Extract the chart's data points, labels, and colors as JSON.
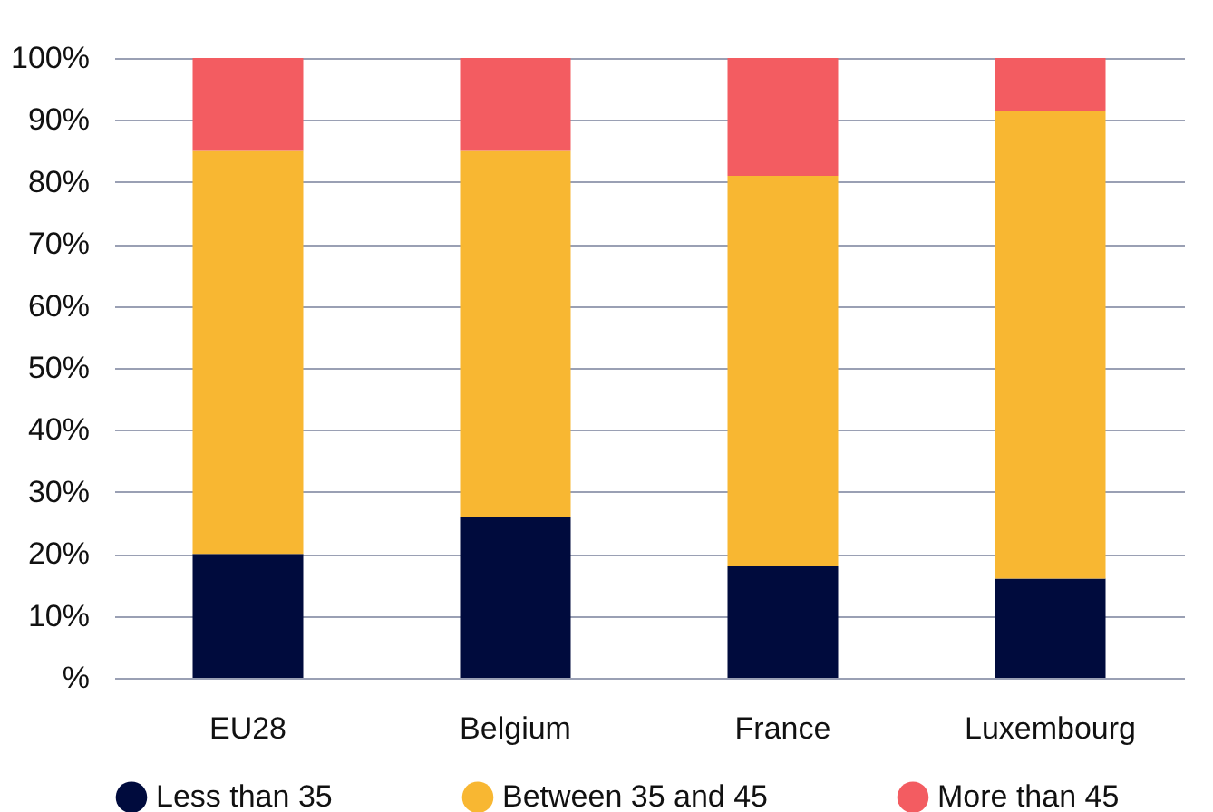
{
  "chart_data": {
    "type": "bar",
    "stacked": true,
    "categories": [
      "EU28",
      "Belgium",
      "France",
      "Luxembourg"
    ],
    "series": [
      {
        "name": "Less than 35",
        "color": "#000b3d",
        "values": [
          20,
          26,
          18,
          16
        ]
      },
      {
        "name": "Between 35 and 45",
        "color": "#f8b732",
        "values": [
          65,
          59,
          63,
          75.5
        ]
      },
      {
        "name": "More than 45",
        "color": "#f35c61",
        "values": [
          15,
          15,
          19,
          8.5
        ]
      }
    ],
    "ylim": [
      0,
      100
    ],
    "yticks": [
      {
        "value": 0,
        "label": "%"
      },
      {
        "value": 10,
        "label": "10%"
      },
      {
        "value": 20,
        "label": "20%"
      },
      {
        "value": 30,
        "label": "30%"
      },
      {
        "value": 40,
        "label": "40%"
      },
      {
        "value": 50,
        "label": "50%"
      },
      {
        "value": 60,
        "label": "60%"
      },
      {
        "value": 70,
        "label": "70%"
      },
      {
        "value": 80,
        "label": "80%"
      },
      {
        "value": 90,
        "label": "90%"
      },
      {
        "value": 100,
        "label": "100%"
      }
    ],
    "grid": "y",
    "legend": "bottom"
  }
}
